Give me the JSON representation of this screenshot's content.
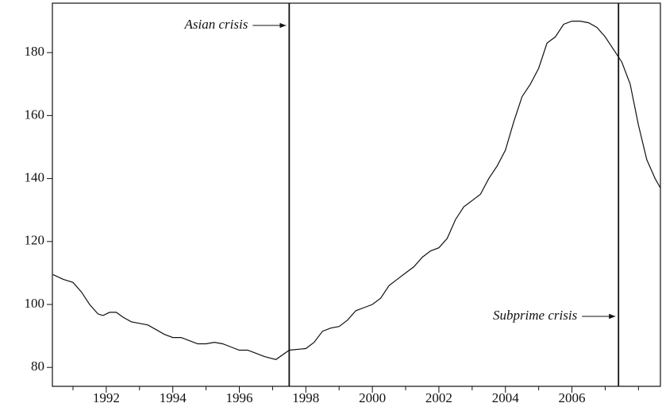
{
  "chart_data": {
    "type": "line",
    "x": [
      1990.4,
      1990.7,
      1991.0,
      1991.25,
      1991.5,
      1991.75,
      1991.9,
      1992.1,
      1992.3,
      1992.5,
      1992.75,
      1993.0,
      1993.25,
      1993.5,
      1993.75,
      1994.0,
      1994.25,
      1994.5,
      1994.75,
      1995.0,
      1995.25,
      1995.5,
      1995.75,
      1996.0,
      1996.25,
      1996.5,
      1996.75,
      1997.1,
      1997.5,
      1998.0,
      1998.25,
      1998.5,
      1998.75,
      1999.0,
      1999.25,
      1999.5,
      1999.75,
      2000.0,
      2000.25,
      2000.5,
      2000.75,
      2001.0,
      2001.25,
      2001.5,
      2001.75,
      2002.0,
      2002.25,
      2002.5,
      2002.75,
      2003.0,
      2003.25,
      2003.5,
      2003.75,
      2004.0,
      2004.25,
      2004.5,
      2004.75,
      2005.0,
      2005.25,
      2005.5,
      2005.75,
      2006.0,
      2006.25,
      2006.5,
      2006.75,
      2007.0,
      2007.25,
      2007.5,
      2007.75,
      2008.0,
      2008.25,
      2008.5,
      2008.66
    ],
    "values": [
      109.5,
      108,
      107,
      104,
      100,
      97,
      96.5,
      97.5,
      97.5,
      96,
      94.5,
      94,
      93.5,
      92,
      90.5,
      89.5,
      89.5,
      88.5,
      87.5,
      87.5,
      88,
      87.5,
      86.5,
      85.5,
      85.5,
      84.5,
      83.5,
      82.5,
      85.5,
      86,
      88,
      91.5,
      92.5,
      93,
      95,
      98,
      99,
      100,
      102,
      106,
      108,
      110,
      112,
      115,
      117,
      118,
      121,
      127,
      131,
      133,
      135,
      140,
      144,
      149,
      158,
      166,
      170,
      175,
      183,
      185,
      189,
      190,
      190,
      189.5,
      188,
      185,
      181,
      177,
      170,
      157,
      146,
      140,
      137
    ],
    "color": "#111111",
    "xlim": [
      1990.38,
      2008.66
    ],
    "xticks": [
      1992,
      1994,
      1996,
      1998,
      2000,
      2002,
      2004,
      2006
    ],
    "xminorticks": [
      1991,
      1993,
      1995,
      1997,
      1999,
      2001,
      2003,
      2005,
      2007,
      2008
    ],
    "ylim": [
      74,
      195.7
    ],
    "yticks": [
      80,
      100,
      120,
      140,
      160,
      180
    ],
    "annotations": [
      {
        "text": "Asian crisis",
        "x": 1997.5
      },
      {
        "text": "Subprime crisis",
        "x": 2007.4
      }
    ]
  }
}
